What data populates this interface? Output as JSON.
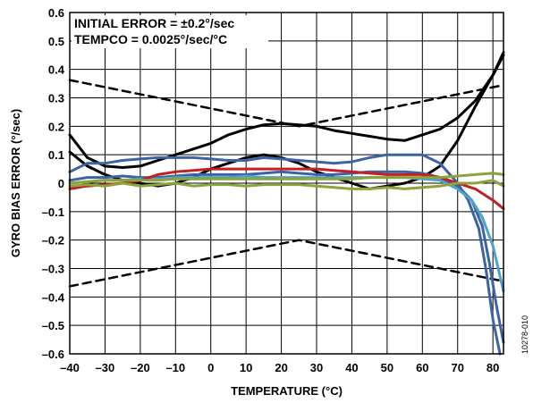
{
  "chart_data": {
    "type": "line",
    "title": "",
    "xlabel": "TEMPERATURE (°C)",
    "ylabel": "GYRO BIAS ERROR (°/sec)",
    "xlim": [
      -40,
      83
    ],
    "ylim": [
      -0.6,
      0.6
    ],
    "grid": true,
    "x_ticks": [
      -40,
      -30,
      -20,
      -10,
      0,
      10,
      20,
      30,
      40,
      50,
      60,
      70,
      80
    ],
    "x_tick_labels": [
      "–40",
      "–30",
      "–20",
      "–10",
      "0",
      "10",
      "20",
      "30",
      "40",
      "50",
      "60",
      "70",
      "80"
    ],
    "y_ticks": [
      0.6,
      0.5,
      0.4,
      0.3,
      0.2,
      0.1,
      0,
      -0.1,
      -0.2,
      -0.3,
      -0.4,
      -0.5,
      -0.6
    ],
    "y_tick_labels": [
      "0.6",
      "0.5",
      "0.4",
      "0.3",
      "0.2",
      "0.1",
      "0",
      "–0.1",
      "–0.2",
      "–0.3",
      "–0.4",
      "–0.5",
      "–0.6"
    ],
    "annotations": [
      "INITIAL ERROR = ±0.2°/sec",
      "TEMPCO = 0.0025°/sec/°C"
    ],
    "figure_id": "10278-010",
    "series": [
      {
        "style": "dashed",
        "color": "#000000",
        "x": [
          -40,
          25,
          83
        ],
        "y": [
          0.3625,
          0.2,
          0.345
        ]
      },
      {
        "style": "dashed",
        "color": "#000000",
        "x": [
          -40,
          25,
          83
        ],
        "y": [
          -0.3625,
          -0.2,
          -0.345
        ]
      },
      {
        "style": "solid",
        "color": "#000000",
        "x": [
          -40,
          -35,
          -30,
          -25,
          -20,
          -15,
          -10,
          -5,
          0,
          5,
          10,
          15,
          20,
          25,
          30,
          35,
          40,
          45,
          50,
          55,
          60,
          65,
          70,
          75,
          80,
          83
        ],
        "y": [
          0.17,
          0.09,
          0.06,
          0.055,
          0.06,
          0.08,
          0.1,
          0.12,
          0.14,
          0.17,
          0.19,
          0.205,
          0.21,
          0.205,
          0.2,
          0.185,
          0.175,
          0.165,
          0.155,
          0.15,
          0.17,
          0.19,
          0.23,
          0.29,
          0.38,
          0.46
        ]
      },
      {
        "style": "solid",
        "color": "#000000",
        "x": [
          -40,
          -35,
          -30,
          -25,
          -20,
          -15,
          -10,
          -5,
          0,
          5,
          10,
          15,
          20,
          25,
          30,
          35,
          40,
          45,
          50,
          55,
          60,
          65,
          70,
          75,
          80,
          83
        ],
        "y": [
          0.11,
          0.06,
          0.03,
          0.01,
          0.0,
          -0.01,
          0.0,
          0.02,
          0.05,
          0.07,
          0.09,
          0.1,
          0.09,
          0.07,
          0.04,
          0.02,
          0.0,
          -0.02,
          -0.01,
          0.0,
          0.02,
          0.06,
          0.15,
          0.27,
          0.38,
          0.45
        ]
      },
      {
        "style": "solid",
        "color": "#3c63a3",
        "x": [
          -40,
          -35,
          -30,
          -25,
          -20,
          -15,
          -10,
          -5,
          0,
          5,
          10,
          15,
          20,
          25,
          30,
          35,
          40,
          45,
          50,
          55,
          60,
          65,
          70,
          73,
          76,
          78,
          80,
          82
        ],
        "y": [
          0.04,
          0.07,
          0.07,
          0.08,
          0.085,
          0.09,
          0.09,
          0.09,
          0.085,
          0.08,
          0.08,
          0.09,
          0.085,
          0.08,
          0.075,
          0.07,
          0.075,
          0.09,
          0.1,
          0.1,
          0.1,
          0.07,
          0.0,
          -0.06,
          -0.16,
          -0.3,
          -0.48,
          -0.6
        ]
      },
      {
        "style": "solid",
        "color": "#3c63a3",
        "x": [
          -40,
          -35,
          -30,
          -25,
          -20,
          -15,
          -10,
          -5,
          0,
          5,
          10,
          15,
          20,
          25,
          30,
          35,
          40,
          45,
          50,
          55,
          60,
          65,
          70,
          74,
          77,
          79,
          81,
          83
        ],
        "y": [
          0.01,
          0.02,
          0.02,
          0.025,
          0.02,
          0.02,
          0.025,
          0.03,
          0.03,
          0.03,
          0.03,
          0.035,
          0.04,
          0.035,
          0.03,
          0.03,
          0.035,
          0.04,
          0.04,
          0.04,
          0.035,
          0.02,
          -0.01,
          -0.06,
          -0.15,
          -0.28,
          -0.43,
          -0.56
        ]
      },
      {
        "style": "solid",
        "color": "#4ea3c9",
        "x": [
          -40,
          -35,
          -30,
          -25,
          -20,
          -15,
          -10,
          -5,
          0,
          5,
          10,
          15,
          20,
          25,
          30,
          35,
          40,
          45,
          50,
          55,
          60,
          65,
          70,
          74,
          77,
          80,
          83
        ],
        "y": [
          0.0,
          0.005,
          0.01,
          0.01,
          0.015,
          0.015,
          0.02,
          0.02,
          0.02,
          0.02,
          0.025,
          0.02,
          0.02,
          0.02,
          0.02,
          0.02,
          0.02,
          0.02,
          0.02,
          0.02,
          0.015,
          0.01,
          -0.02,
          -0.06,
          -0.12,
          -0.22,
          -0.38
        ]
      },
      {
        "style": "solid",
        "color": "#c41f24",
        "x": [
          -40,
          -35,
          -30,
          -25,
          -20,
          -15,
          -10,
          -5,
          0,
          5,
          10,
          15,
          20,
          25,
          30,
          35,
          40,
          45,
          50,
          55,
          60,
          65,
          70,
          75,
          80,
          83
        ],
        "y": [
          -0.02,
          -0.01,
          -0.005,
          0.0,
          0.01,
          0.03,
          0.04,
          0.045,
          0.05,
          0.05,
          0.05,
          0.05,
          0.05,
          0.05,
          0.05,
          0.045,
          0.04,
          0.035,
          0.03,
          0.03,
          0.03,
          0.02,
          0.0,
          -0.02,
          -0.06,
          -0.09
        ]
      },
      {
        "style": "solid",
        "color": "#8aa33a",
        "x": [
          -40,
          -35,
          -30,
          -25,
          -20,
          -15,
          -10,
          -5,
          0,
          5,
          10,
          15,
          20,
          25,
          30,
          35,
          40,
          45,
          50,
          55,
          60,
          65,
          70,
          75,
          80,
          83
        ],
        "y": [
          0.0,
          0.005,
          0.01,
          0.01,
          0.01,
          0.01,
          0.015,
          0.015,
          0.015,
          0.015,
          0.015,
          0.015,
          0.015,
          0.015,
          0.015,
          0.015,
          0.015,
          0.02,
          0.02,
          0.02,
          0.02,
          0.02,
          0.025,
          0.03,
          0.035,
          0.03
        ]
      },
      {
        "style": "solid",
        "color": "#8aa33a",
        "x": [
          -40,
          -35,
          -30,
          -25,
          -20,
          -15,
          -10,
          -5,
          0,
          5,
          10,
          15,
          20,
          25,
          30,
          35,
          40,
          45,
          50,
          55,
          60,
          65,
          70,
          75,
          80,
          83
        ],
        "y": [
          -0.01,
          -0.005,
          -0.01,
          0.0,
          -0.01,
          -0.005,
          0.0,
          -0.01,
          -0.005,
          -0.005,
          -0.01,
          -0.005,
          -0.005,
          -0.005,
          -0.01,
          -0.015,
          -0.02,
          -0.02,
          -0.015,
          -0.02,
          -0.015,
          -0.01,
          0.0,
          0.0,
          0.01,
          -0.01
        ]
      }
    ]
  }
}
